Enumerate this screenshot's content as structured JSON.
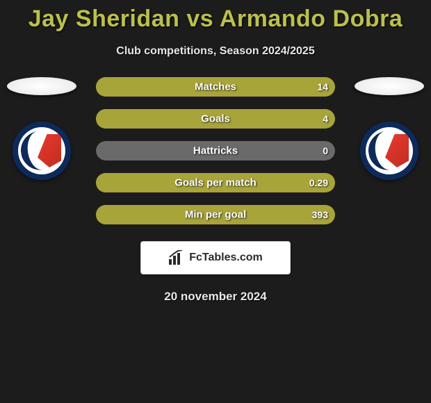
{
  "title": "Jay Sheridan vs Armando Dobra",
  "title_color": "#bcc04a",
  "subtitle": "Club competitions, Season 2024/2025",
  "background_color": "#1c1c1c",
  "date_text": "20 november 2024",
  "attribution": "FcTables.com",
  "bars_width": 344,
  "bars_height": 28,
  "player_left": {
    "club_badge_colors": {
      "ring": "#0d2a5b",
      "inner": "#ffffff",
      "accent": "#e63b2e"
    }
  },
  "player_right": {
    "club_badge_colors": {
      "ring": "#0d2a5b",
      "inner": "#ffffff",
      "accent": "#e63b2e"
    }
  },
  "stats": [
    {
      "label": "Matches",
      "left_value": "",
      "right_value": "14",
      "left_fill_pct": 0,
      "right_fill_pct": 100,
      "left_color": "#a7a43a",
      "right_color": "#a7a43a",
      "bg_color": "#a7a43a"
    },
    {
      "label": "Goals",
      "left_value": "",
      "right_value": "4",
      "left_fill_pct": 0,
      "right_fill_pct": 100,
      "left_color": "#a7a43a",
      "right_color": "#a7a43a",
      "bg_color": "#a7a43a"
    },
    {
      "label": "Hattricks",
      "left_value": "",
      "right_value": "0",
      "left_fill_pct": 0,
      "right_fill_pct": 0,
      "left_color": "#a7a43a",
      "right_color": "#a7a43a",
      "bg_color": "#6a6a6a"
    },
    {
      "label": "Goals per match",
      "left_value": "",
      "right_value": "0.29",
      "left_fill_pct": 0,
      "right_fill_pct": 100,
      "left_color": "#a7a43a",
      "right_color": "#a7a43a",
      "bg_color": "#a7a43a"
    },
    {
      "label": "Min per goal",
      "left_value": "",
      "right_value": "393",
      "left_fill_pct": 0,
      "right_fill_pct": 100,
      "left_color": "#a7a43a",
      "right_color": "#a7a43a",
      "bg_color": "#a7a43a"
    }
  ]
}
